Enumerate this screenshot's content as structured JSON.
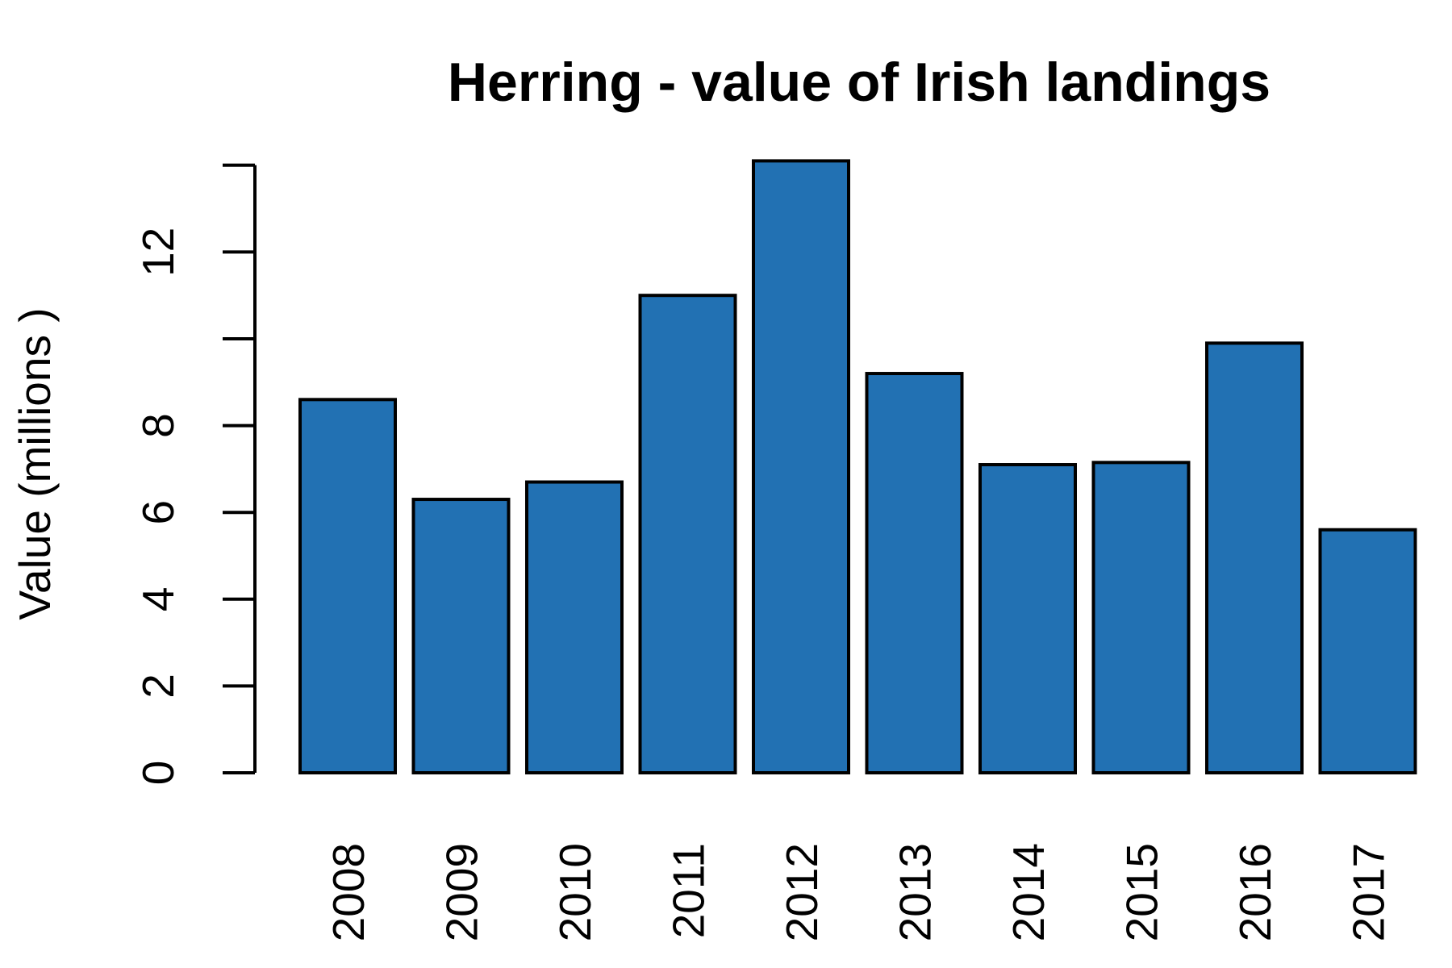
{
  "chart_data": {
    "type": "bar",
    "title": "Herring - value of Irish landings",
    "xlabel": "",
    "ylabel": "Value (millions )",
    "categories": [
      "2008",
      "2009",
      "2010",
      "2011",
      "2012",
      "2013",
      "2014",
      "2015",
      "2016",
      "2017"
    ],
    "values": [
      8.6,
      6.3,
      6.7,
      11.0,
      14.1,
      9.2,
      7.1,
      7.15,
      9.9,
      5.6
    ],
    "yticks": [
      0,
      2,
      4,
      6,
      8,
      12
    ],
    "ylim": [
      0,
      14
    ],
    "bar_color": "#2271b3",
    "grid": false,
    "legend": "none"
  }
}
